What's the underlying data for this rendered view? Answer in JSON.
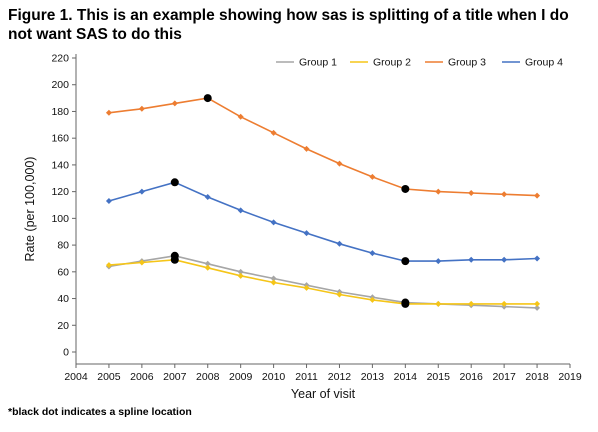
{
  "title": "Figure 1. This is an example showing how sas is splitting of a title when I do not want SAS to do this",
  "footnote": "*black dot indicates a spline location",
  "chart_data": {
    "type": "line",
    "title": "Figure 1. This is an example showing how sas is splitting of a title when I do not want SAS to do this",
    "xlabel": "Year of visit",
    "ylabel": "Rate (per 100,000)",
    "xlim": [
      2004,
      2019
    ],
    "ylim": [
      0,
      220
    ],
    "xticks": [
      2004,
      2005,
      2006,
      2007,
      2008,
      2009,
      2010,
      2011,
      2012,
      2013,
      2014,
      2015,
      2016,
      2017,
      2018,
      2019
    ],
    "yticks": [
      0,
      20,
      40,
      60,
      80,
      100,
      120,
      140,
      160,
      180,
      200,
      220
    ],
    "grid": false,
    "legend": "top-right",
    "x": [
      2005,
      2006,
      2007,
      2008,
      2009,
      2010,
      2011,
      2012,
      2013,
      2014,
      2015,
      2016,
      2017,
      2018
    ],
    "series": [
      {
        "name": "Group 1",
        "color": "#a6a6a6",
        "values": [
          64,
          68,
          72,
          66,
          60,
          55,
          50,
          45,
          41,
          37,
          36,
          35,
          34,
          33
        ],
        "spline_knots": [
          2007,
          2014
        ]
      },
      {
        "name": "Group 2",
        "color": "#f5c518",
        "values": [
          65,
          67,
          69,
          63,
          57,
          52,
          48,
          43,
          39,
          36,
          36,
          36,
          36,
          36
        ],
        "spline_knots": [
          2007,
          2014
        ]
      },
      {
        "name": "Group 3",
        "color": "#ed7d31",
        "values": [
          179,
          182,
          186,
          190,
          176,
          164,
          152,
          141,
          131,
          122,
          120,
          119,
          118,
          117
        ],
        "spline_knots": [
          2008,
          2014
        ]
      },
      {
        "name": "Group 4",
        "color": "#4472c4",
        "values": [
          113,
          120,
          127,
          116,
          106,
          97,
          89,
          81,
          74,
          68,
          68,
          69,
          69,
          70
        ],
        "spline_knots": [
          2007,
          2014
        ]
      }
    ],
    "spline_marker_color": "#000000"
  }
}
